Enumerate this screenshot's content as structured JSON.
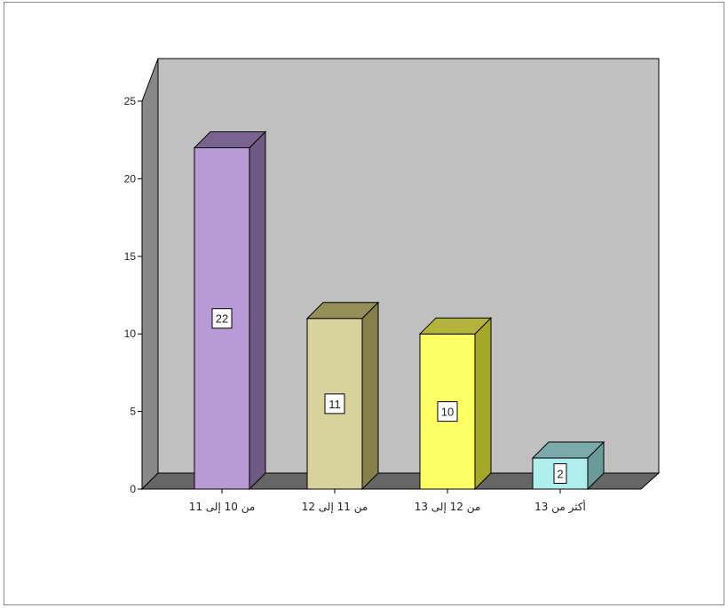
{
  "chart_data": {
    "type": "bar",
    "categories": [
      "من 10 إلى 11",
      "من 11 إلى 12",
      "من 12 إلى 13",
      "أكثر من 13"
    ],
    "values": [
      22,
      11,
      10,
      2
    ],
    "data_labels": [
      "22",
      "11",
      "10",
      "2"
    ],
    "title": "",
    "xlabel": "",
    "ylabel": "",
    "ylim": [
      0,
      25
    ],
    "yticks": [
      0,
      5,
      10,
      15,
      20,
      25
    ],
    "ytick_labels": [
      "0",
      "5",
      "10",
      "15",
      "20",
      "25"
    ],
    "grid": false,
    "legend": "none",
    "style": "3d",
    "colors": {
      "bars": [
        "#b89ad6",
        "#d8d29c",
        "#ffff66",
        "#b0eeee"
      ],
      "bar_sides": [
        "#6e5a82",
        "#85804c",
        "#a6a628",
        "#6a9a9a"
      ],
      "bar_tops": [
        "#7a638f",
        "#948e58",
        "#b4b43c",
        "#7aaaaa"
      ],
      "back_wall": "#c0c0c0",
      "side_wall": "#888888",
      "floor": "#666666"
    }
  }
}
